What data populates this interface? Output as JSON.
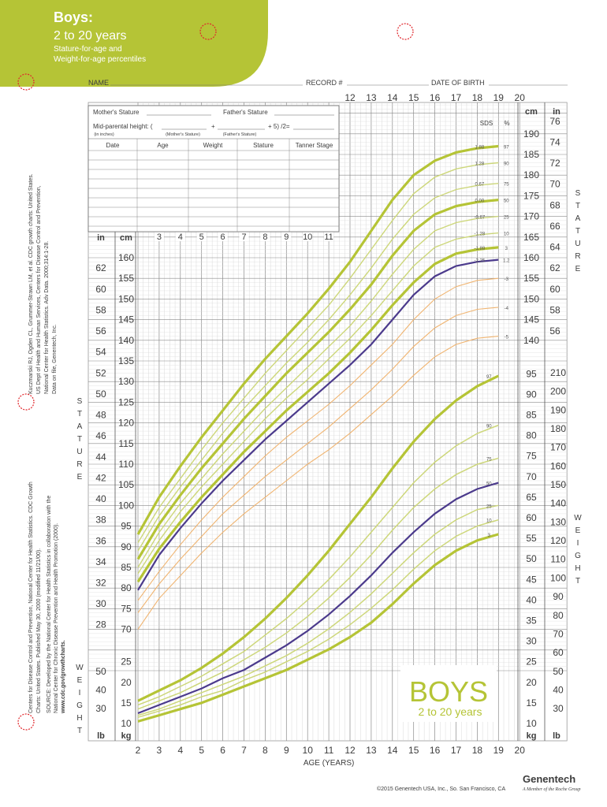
{
  "header": {
    "title": "Boys:",
    "subtitle": "2 to 20 years",
    "line1": "Stature-for-age and",
    "line2": "Weight-for-age percentiles",
    "accent_color": "#b5c436",
    "punch_hole_color": "#e0262b"
  },
  "form": {
    "name_label": "NAME",
    "record_label": "RECORD #",
    "dob_label": "DATE OF BIRTH",
    "mothers_stature": "Mother's Stature",
    "fathers_stature": "Father's Stature",
    "mid_parental": "Mid-parental height: (",
    "plus": "+",
    "plus5": "+ 5) /2=",
    "in_inches": "(in inches)",
    "mothers_stature_small": "(Mother's Stature)",
    "fathers_stature_small": "(Father's Stature)",
    "columns": [
      "Date",
      "Age",
      "Weight",
      "Stature",
      "Tanner Stage"
    ]
  },
  "side_text": {
    "ref1": "Kuczmarski RJ, Ogden CL, Grummer-Strawn LM, et al. CDC growth charts: United States.",
    "ref2": "US Dept of Health and Human Services, Centers for Disease Control and Prevention,",
    "ref3": "National Center for Health Statistics. Adv Data. 2000;314:1-28.",
    "ref4": "Data on file, Genentech, Inc.",
    "src1": "Centers for Disease Control and Prevention, National Center for Health Statistics. CDC Growth",
    "src2": "Charts: United States. Published May 30, 2000 (modified 11/21/00).",
    "src3": "SOURCE: Developed by the National Center for Health Statistics in collaboration with the",
    "src4": "National Center for Chronic Disease Prevention and Health Promotion (2000).",
    "src5": "www.cdc.gov/growthcharts."
  },
  "footer": {
    "boys_big": "BOYS",
    "boys_sub": "2 to 20 years",
    "copyright": "©2015 Genentech USA, Inc., So. San Francisco, CA",
    "brand": "Genentech",
    "brand_sub": "A Member of the Roche Group"
  },
  "colors": {
    "green": "#b5c436",
    "light_green": "#cdd77a",
    "purple": "#4b3a8c",
    "orange": "#f0b470",
    "grid": "#9a9a9a"
  },
  "chart_data": [
    {
      "type": "line",
      "name_hidden": "stature",
      "xlabel": "AGE (YEARS)",
      "ylabel_left": "STATURE",
      "ylabel_right": "STATURE",
      "x_ticks_top": [
        12,
        13,
        14,
        15,
        16,
        17,
        18,
        19,
        20
      ],
      "x_ticks_bottom": [
        2,
        3,
        4,
        5,
        6,
        7,
        8,
        9,
        10,
        11,
        12,
        13,
        14,
        15,
        16,
        17,
        18,
        19,
        20
      ],
      "x_ticks_mid": [
        3,
        4,
        5,
        6,
        7,
        8,
        9,
        10,
        11
      ],
      "cm_ticks_left": [
        70,
        75,
        80,
        85,
        90,
        95,
        100,
        105,
        110,
        115,
        120,
        125,
        130,
        135,
        140,
        145,
        150,
        155,
        160
      ],
      "in_ticks_left": [
        28,
        30,
        32,
        34,
        36,
        38,
        40,
        42,
        44,
        46,
        48,
        50,
        52,
        54,
        56,
        58,
        60,
        62
      ],
      "cm_ticks_right": [
        140,
        145,
        150,
        155,
        160,
        165,
        170,
        175,
        180,
        185,
        190
      ],
      "in_ticks_right": [
        56,
        58,
        60,
        62,
        64,
        66,
        68,
        70,
        72,
        74,
        76
      ],
      "x": [
        2,
        3,
        4,
        5,
        6,
        7,
        8,
        9,
        10,
        11,
        12,
        13,
        14,
        15,
        16,
        17,
        18,
        19
      ],
      "series": [
        {
          "name": "97",
          "sds": "1.88",
          "values": [
            93,
            102,
            109.5,
            116.5,
            123,
            129.5,
            135.5,
            141,
            146.5,
            152.5,
            159,
            166.5,
            174,
            180,
            183.5,
            185.5,
            186.5,
            187
          ]
        },
        {
          "name": "90",
          "sds": "1.28",
          "values": [
            91,
            99.5,
            106.5,
            113.5,
            120,
            126,
            132,
            137.5,
            143,
            148.5,
            155,
            162,
            169,
            175.5,
            179.5,
            181.5,
            182.5,
            183
          ]
        },
        {
          "name": "75",
          "sds": "0.67",
          "values": [
            89,
            97.5,
            104.5,
            111,
            117.5,
            123.5,
            129,
            134.5,
            139.5,
            145,
            151,
            157.5,
            164.5,
            170.5,
            174.5,
            176.5,
            177.5,
            178
          ]
        },
        {
          "name": "50",
          "sds": "0.00",
          "values": [
            87,
            95.5,
            102.5,
            109,
            115,
            121,
            126.5,
            132,
            137,
            142,
            147.5,
            153.5,
            160.5,
            166.5,
            170.5,
            172.5,
            173.5,
            174
          ]
        },
        {
          "name": "25",
          "sds": "-0.67",
          "values": [
            85,
            93.5,
            100.5,
            106.5,
            112.5,
            118,
            123.5,
            128.5,
            133.5,
            138.5,
            143.5,
            149.5,
            156,
            162,
            166.5,
            168.5,
            169.5,
            170
          ]
        },
        {
          "name": "10",
          "sds": "-1.28",
          "values": [
            83.5,
            91.5,
            98.5,
            104.5,
            110,
            115.5,
            121,
            126,
            130.5,
            135.5,
            140.5,
            146,
            152,
            158,
            162.5,
            164.5,
            165.5,
            166
          ]
        },
        {
          "name": "3",
          "sds": "-1.88",
          "values": [
            81.5,
            89.5,
            96,
            102,
            107.5,
            113,
            118,
            123,
            127.5,
            132,
            137,
            142.5,
            148.5,
            154,
            158.5,
            161,
            162,
            162.5
          ]
        },
        {
          "name": "1.2",
          "sds": "-2.25",
          "values": [
            79.5,
            88,
            94.5,
            100.5,
            106,
            111,
            116,
            120.5,
            125,
            129.5,
            134,
            139,
            145,
            151,
            155.5,
            158,
            159,
            159.5
          ]
        },
        {
          "name": "-3",
          "sds": "",
          "values": [
            77,
            84,
            90.5,
            96.5,
            102,
            107,
            112,
            116.5,
            120.5,
            124.5,
            129,
            134,
            139,
            145,
            150,
            153,
            154.5,
            155
          ]
        },
        {
          "name": "-4",
          "sds": "",
          "values": [
            74,
            81,
            87,
            92.5,
            98,
            102.5,
            107,
            111,
            115,
            119,
            123.5,
            128,
            133,
            138.5,
            143,
            146,
            147.5,
            148
          ]
        },
        {
          "name": "-5",
          "sds": "",
          "values": [
            70,
            77.5,
            83,
            88.5,
            93.5,
            98,
            102,
            106,
            110,
            113.5,
            117.5,
            122,
            126.5,
            131.5,
            136,
            139,
            140.5,
            141
          ]
        }
      ]
    },
    {
      "type": "line",
      "name_hidden": "weight",
      "ylabel_right": "WEIGHT",
      "kg_ticks_right": [
        10,
        15,
        20,
        25,
        30,
        35,
        40,
        45,
        50,
        55,
        60,
        65,
        70,
        75,
        80,
        85,
        90,
        95
      ],
      "lb_ticks_right": [
        30,
        40,
        50,
        60,
        70,
        80,
        90,
        100,
        110,
        120,
        130,
        140,
        150,
        160,
        170,
        180,
        190,
        200,
        210
      ],
      "kg_ticks_left": [
        10,
        15,
        20,
        25
      ],
      "lb_ticks_left": [
        30,
        40,
        50
      ],
      "x": [
        2,
        3,
        4,
        5,
        6,
        7,
        8,
        9,
        10,
        11,
        12,
        13,
        14,
        15,
        16,
        17,
        18,
        19
      ],
      "series": [
        {
          "name": "97",
          "values": [
            15.5,
            18,
            20.5,
            23.5,
            27,
            31,
            35.5,
            40.5,
            46,
            52,
            58.5,
            65,
            72,
            78.5,
            84,
            88.5,
            92,
            94.5
          ]
        },
        {
          "name": "90",
          "values": [
            14.5,
            16.5,
            19,
            21.5,
            24.5,
            27.5,
            31.5,
            35.5,
            40,
            45,
            50.5,
            56.5,
            62.5,
            68.5,
            73.5,
            77.5,
            80.5,
            82.5
          ]
        },
        {
          "name": "75",
          "values": [
            13.5,
            15.5,
            17.5,
            20,
            22.5,
            25.5,
            28.5,
            32,
            36,
            40.5,
            45.5,
            51,
            57,
            62.5,
            67,
            70.5,
            73,
            74.5
          ]
        },
        {
          "name": "50",
          "values": [
            12.5,
            14.5,
            16.5,
            18.5,
            21,
            23,
            26,
            29,
            32.5,
            36.5,
            41,
            46,
            51.5,
            56.5,
            61,
            64.5,
            67,
            68.5
          ]
        },
        {
          "name": "25",
          "values": [
            12,
            13.5,
            15.5,
            17.5,
            19.5,
            21.5,
            24,
            26.5,
            29.5,
            33,
            37,
            41.5,
            46.5,
            51.5,
            56,
            59.5,
            62,
            63
          ]
        },
        {
          "name": "10",
          "values": [
            11.5,
            13,
            14.5,
            16.5,
            18,
            20.5,
            22.5,
            25,
            27.5,
            30.5,
            34,
            38,
            42.5,
            47.5,
            52,
            55.5,
            58,
            59.5
          ]
        },
        {
          "name": "3",
          "values": [
            10.5,
            12,
            13.5,
            15,
            17,
            19,
            21,
            23,
            25.5,
            28,
            31,
            34.5,
            39,
            44,
            48.5,
            52,
            54.5,
            56
          ]
        }
      ]
    }
  ]
}
